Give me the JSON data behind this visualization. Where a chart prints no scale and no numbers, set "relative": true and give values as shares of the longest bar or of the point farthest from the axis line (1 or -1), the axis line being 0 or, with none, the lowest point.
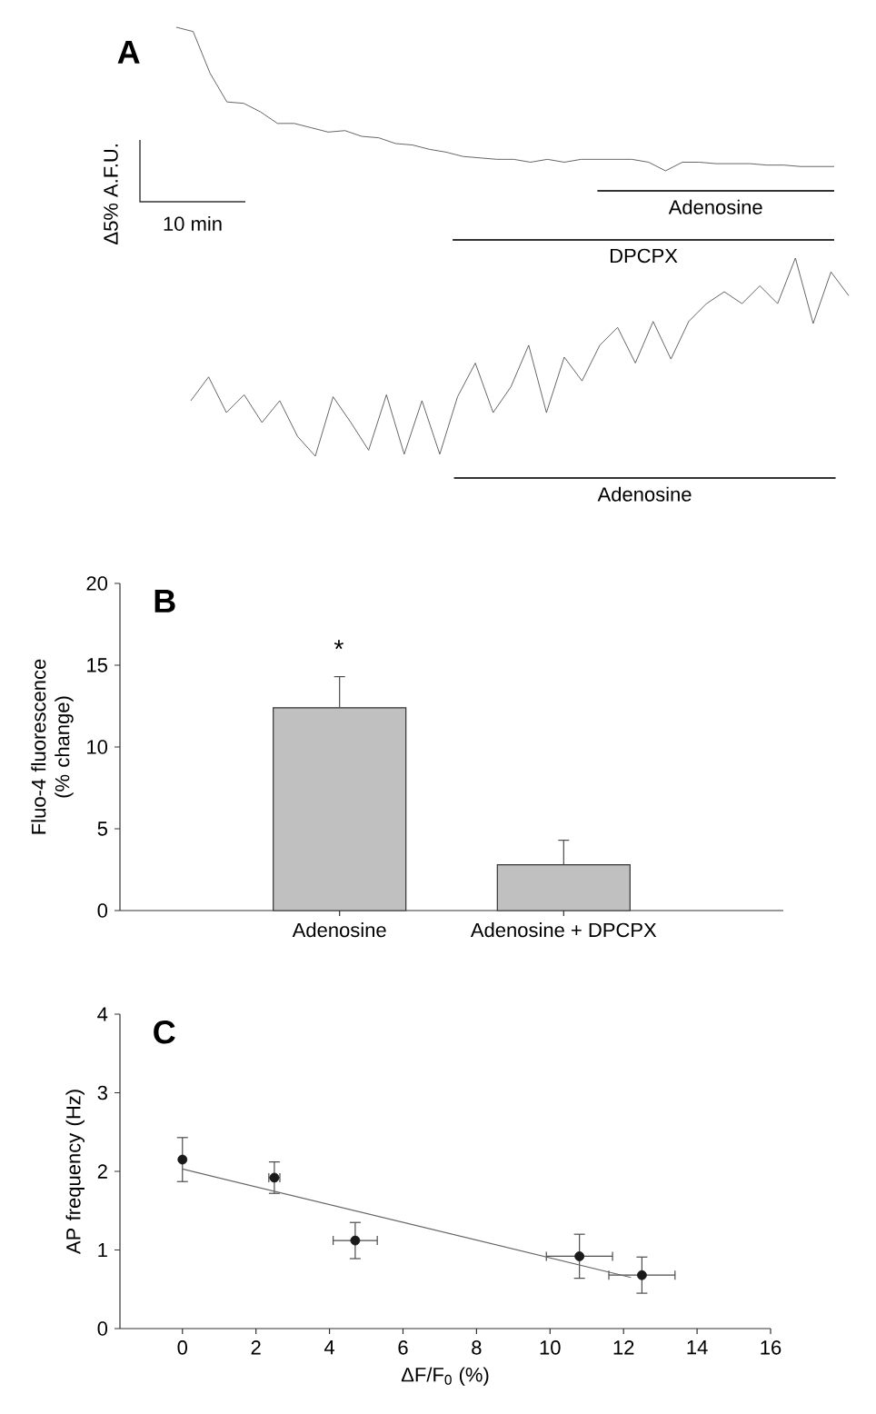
{
  "chart_data": [
    {
      "type": "line",
      "title": "A",
      "relative": true,
      "tick_labels": false,
      "annotations": [
        "Δ5% A.F.U.",
        "10 min",
        "Adenosine",
        "DPCPX"
      ],
      "categories": [
        null,
        null,
        null,
        null,
        null,
        null,
        null,
        null,
        null,
        null,
        null,
        null,
        null,
        null,
        null,
        null,
        null,
        null,
        null,
        null,
        null,
        null,
        null,
        null,
        null,
        null,
        null,
        null,
        null,
        null,
        null,
        null,
        null,
        null,
        null,
        null,
        null,
        null,
        null,
        null
      ],
      "series": [
        {
          "color": "#555555",
          "values": [
            1.0,
            0.97,
            0.68,
            0.48,
            0.47,
            0.41,
            0.33,
            0.33,
            0.3,
            0.27,
            0.28,
            0.24,
            0.23,
            0.19,
            0.18,
            0.15,
            0.13,
            0.1,
            0.09,
            0.08,
            0.08,
            0.06,
            0.08,
            0.06,
            0.08,
            0.08,
            0.08,
            0.08,
            0.06,
            0.0,
            0.06,
            0.06,
            0.05,
            0.05,
            0.05,
            0.04,
            0.04,
            0.03,
            0.03,
            0.03
          ]
        }
      ]
    },
    {
      "type": "line",
      "relative": true,
      "tick_labels": false,
      "annotations": [
        "Adenosine"
      ],
      "categories": [
        null,
        null,
        null,
        null,
        null,
        null,
        null,
        null,
        null,
        null,
        null,
        null,
        null,
        null,
        null,
        null,
        null,
        null,
        null,
        null,
        null,
        null,
        null,
        null,
        null,
        null,
        null,
        null,
        null,
        null,
        null,
        null,
        null,
        null,
        null,
        null,
        null,
        null
      ],
      "series": [
        {
          "color": "#555555",
          "values": [
            0.28,
            0.4,
            0.22,
            0.31,
            0.17,
            0.28,
            0.1,
            0.0,
            0.3,
            0.17,
            0.03,
            0.31,
            0.01,
            0.28,
            0.01,
            0.3,
            0.47,
            0.22,
            0.35,
            0.56,
            0.22,
            0.5,
            0.38,
            0.56,
            0.65,
            0.47,
            0.68,
            0.49,
            0.68,
            0.77,
            0.83,
            0.77,
            0.86,
            0.77,
            1.0,
            0.67,
            0.93,
            0.81
          ]
        }
      ]
    },
    {
      "type": "bar",
      "title": "B",
      "ylabel": "Fluo-4 fluorescence (% change)",
      "categories": [
        "Adenosine",
        "Adenosine + DPCPX"
      ],
      "values": [
        12.4,
        2.8
      ],
      "color": "#c0c0c0",
      "errors": [
        [
          12.4,
          14.3
        ],
        [
          2.8,
          4.3
        ]
      ],
      "ylim": [
        0,
        20
      ],
      "yticks": [
        0,
        5,
        10,
        15,
        20
      ],
      "annotations": [
        "*"
      ]
    },
    {
      "type": "scatter",
      "title": "C",
      "xlabel": "ΔF/F$_{0}$ (%)",
      "ylabel": "AP frequency (Hz)",
      "xlim": [
        -1.7,
        16
      ],
      "xticks": [
        0,
        2,
        4,
        6,
        8,
        10,
        12,
        14,
        16
      ],
      "ylim": [
        0,
        4
      ],
      "yticks": [
        0,
        1,
        2,
        3,
        4
      ],
      "series": [
        {
          "type": "scatter",
          "marker": "circle",
          "color": "#1a1a1a",
          "x": [
            0,
            2.5,
            4.7,
            10.8,
            12.5
          ],
          "values": [
            2.15,
            1.92,
            1.12,
            0.92,
            0.68
          ],
          "errors": [
            0.28,
            0.2,
            0.23,
            0.28,
            0.23
          ],
          "xerrors": [
            null,
            0.15,
            0.6,
            0.9,
            0.9
          ]
        },
        {
          "type": "line",
          "color": "#666666",
          "x": [
            0,
            12.2
          ],
          "values": [
            2.03,
            0.65
          ]
        }
      ]
    }
  ]
}
